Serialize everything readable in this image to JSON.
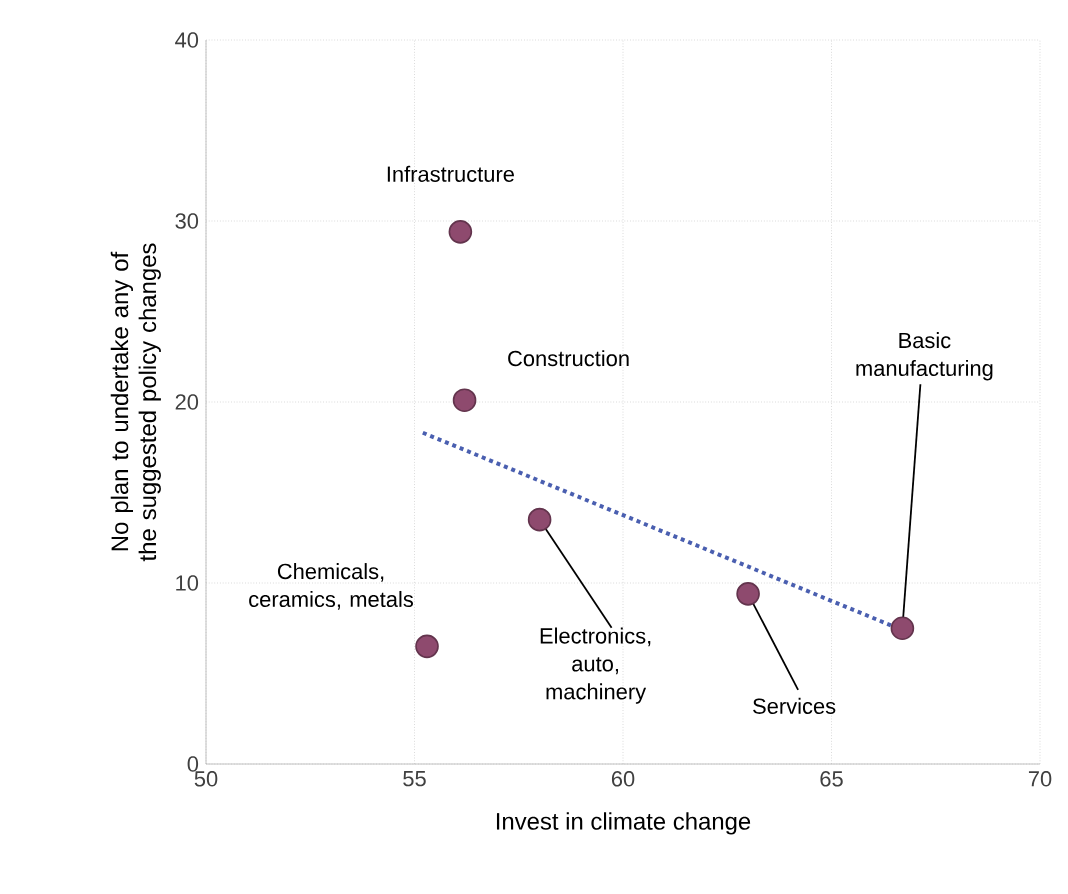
{
  "chart_data": {
    "type": "scatter",
    "xlabel": "Invest in climate change",
    "ylabel": "No plan to undertake any of the suggested policy changes",
    "xlim": [
      50,
      70
    ],
    "xticks": [
      50,
      55,
      60,
      65,
      70
    ],
    "ylim": [
      0,
      40
    ],
    "yticks": [
      0,
      10,
      20,
      30,
      40
    ],
    "grid": true,
    "series": [
      {
        "marker": "circle",
        "color": "#8e4a6e",
        "x": [
          56.1,
          56.2,
          58.0,
          55.3,
          63.0,
          66.7
        ],
        "values": [
          29.4,
          20.1,
          13.5,
          6.5,
          9.4,
          7.5
        ]
      },
      {
        "type": "line",
        "color": "#4a5fb0",
        "line_style": "dotted",
        "marker": "none",
        "x": [
          55.2,
          66.7
        ],
        "values": [
          18.3,
          7.4
        ]
      }
    ],
    "annotations": [
      {
        "text": "Infrastructure",
        "x": 56.1,
        "y": 29.4
      },
      {
        "text": "Construction",
        "x": 56.2,
        "y": 20.1
      },
      {
        "text": "Electronics, auto, machinery",
        "x": 58.0,
        "y": 13.5
      },
      {
        "text": "Chemicals, ceramics, metals",
        "x": 55.3,
        "y": 6.5
      },
      {
        "text": "Services",
        "x": 63.0,
        "y": 9.4
      },
      {
        "text": "Basic manufacturing",
        "x": 66.7,
        "y": 7.5
      }
    ]
  }
}
